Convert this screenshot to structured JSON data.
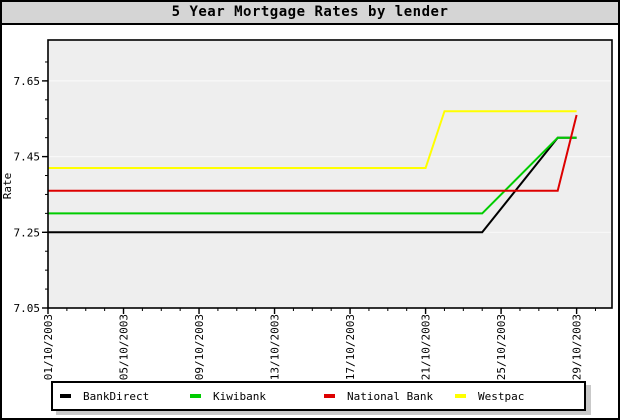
{
  "window": {
    "title": "5 Year Mortgage Rates by lender"
  },
  "y_axis": {
    "label": "Rate",
    "tick_labels": [
      "7.05",
      "7.25",
      "7.45",
      "7.65"
    ],
    "min": 7.05,
    "major_step": 0.2,
    "minor_step": 0.05
  },
  "x_axis": {
    "tick_labels": [
      "01/10/2003",
      "05/10/2003",
      "09/10/2003",
      "13/10/2003",
      "17/10/2003",
      "21/10/2003",
      "25/10/2003",
      "29/10/2003"
    ],
    "major_step_days": 4,
    "minor_step_days": 1
  },
  "legend": {
    "items": [
      {
        "label": "BankDirect",
        "color": "#000000"
      },
      {
        "label": "Kiwibank",
        "color": "#00cc00"
      },
      {
        "label": "National Bank",
        "color": "#dd0000"
      },
      {
        "label": "Westpac",
        "color": "#ffff00"
      }
    ]
  },
  "colors": {
    "plot_background": "#eeeeee",
    "gridline": "#f8f8f8",
    "titlebar_background": "#d5d5d5",
    "legend_shadow": "#c9c9c9"
  },
  "chart_data": {
    "type": "line",
    "title": "5 Year Mortgage Rates by lender",
    "xlabel": "",
    "ylabel": "Rate",
    "x_range": [
      "01/10/2003",
      "29/10/2003"
    ],
    "ylim": [
      7.05,
      7.76
    ],
    "grid": "horizontal-major",
    "legend_position": "bottom",
    "series": [
      {
        "name": "BankDirect",
        "color": "#000000",
        "points": [
          [
            "01/10/2003",
            7.25
          ],
          [
            "24/10/2003",
            7.25
          ],
          [
            "28/10/2003",
            7.5
          ],
          [
            "29/10/2003",
            7.5
          ]
        ]
      },
      {
        "name": "Kiwibank",
        "color": "#00cc00",
        "points": [
          [
            "01/10/2003",
            7.3
          ],
          [
            "24/10/2003",
            7.3
          ],
          [
            "28/10/2003",
            7.5
          ],
          [
            "29/10/2003",
            7.5
          ]
        ]
      },
      {
        "name": "National Bank",
        "color": "#dd0000",
        "points": [
          [
            "01/10/2003",
            7.36
          ],
          [
            "28/10/2003",
            7.36
          ],
          [
            "29/10/2003",
            7.56
          ]
        ]
      },
      {
        "name": "Westpac",
        "color": "#ffff00",
        "points": [
          [
            "01/10/2003",
            7.42
          ],
          [
            "21/10/2003",
            7.42
          ],
          [
            "22/10/2003",
            7.57
          ],
          [
            "29/10/2003",
            7.57
          ]
        ]
      }
    ]
  }
}
